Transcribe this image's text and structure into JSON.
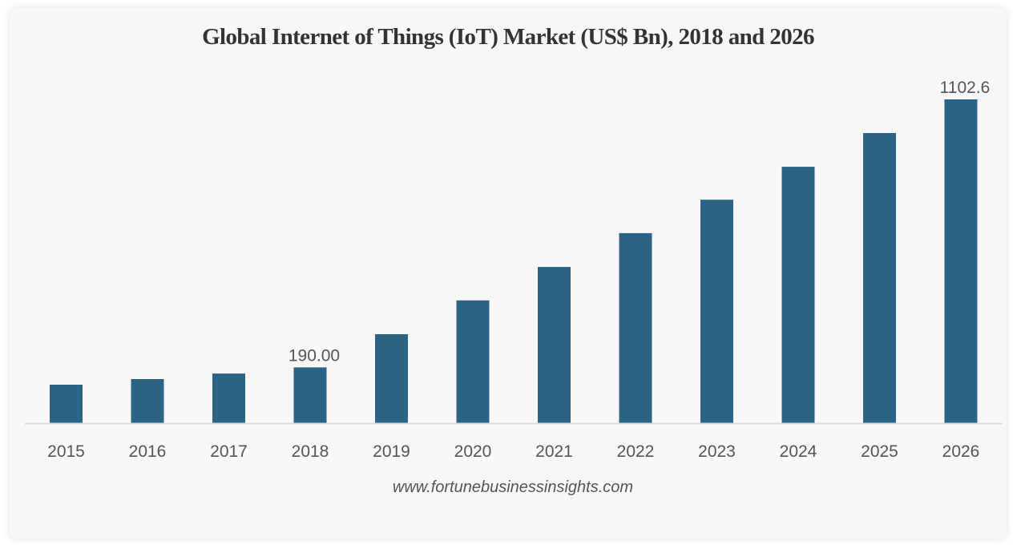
{
  "chart_data": {
    "type": "bar",
    "title": "Global Internet of Things (IoT) Market (US$ Bn), 2018 and 2026",
    "xlabel": "",
    "ylabel": "",
    "categories": [
      "2015",
      "2016",
      "2017",
      "2018",
      "2019",
      "2020",
      "2021",
      "2022",
      "2023",
      "2024",
      "2025",
      "2026"
    ],
    "values": [
      131,
      150,
      169,
      190.0,
      303,
      418,
      532,
      647,
      761,
      873,
      988,
      1102.6
    ],
    "data_labels": [
      {
        "category": "2018",
        "text": "190.00"
      },
      {
        "category": "2026",
        "text": "1102.6"
      }
    ],
    "ylim": [
      0,
      1102.6
    ],
    "grid": false,
    "y_axis_visible": false,
    "bar_color": "#2b6385",
    "source": "www.fortunebusinessinsights.com"
  },
  "colors": {
    "background": "#f7f7f7",
    "bar": "#2b6385",
    "baseline": "#dcdcdc",
    "text": "#555555",
    "title": "#333333"
  }
}
